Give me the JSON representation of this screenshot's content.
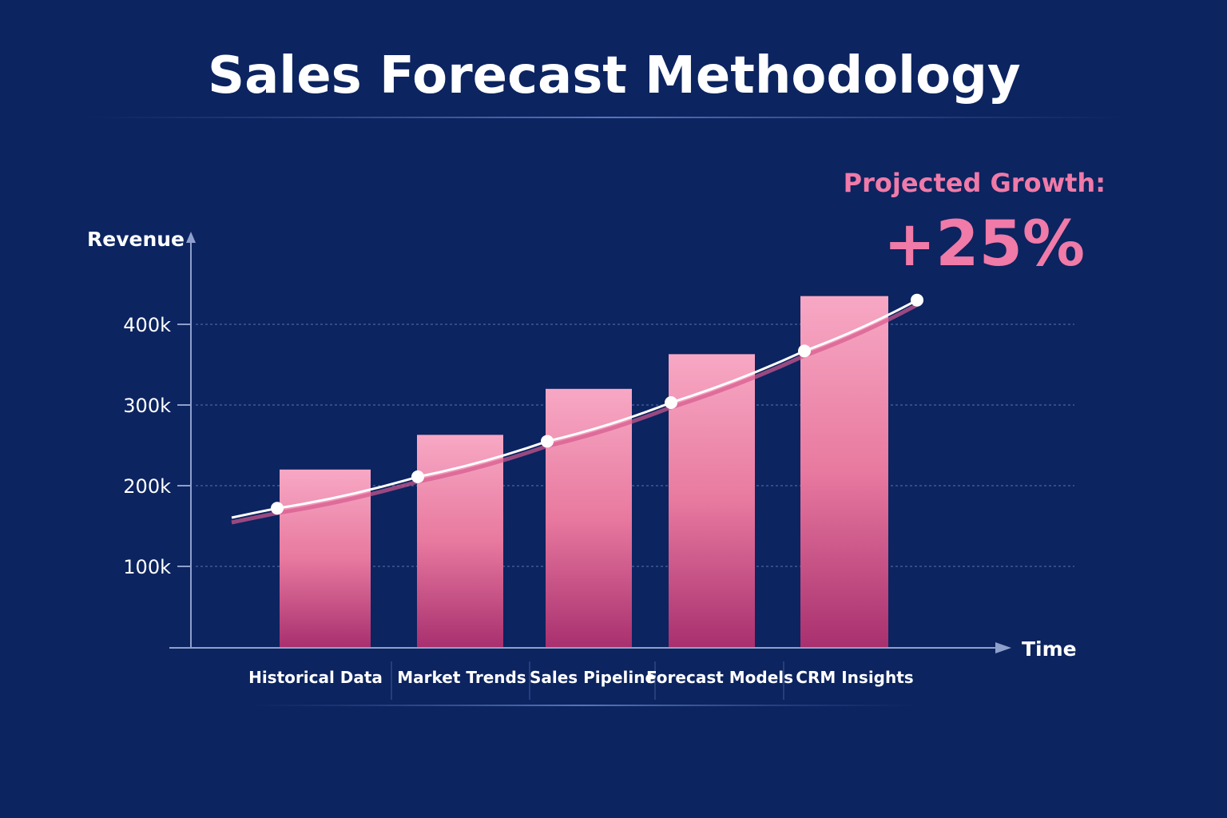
{
  "chart_data": {
    "type": "bar",
    "title": "Sales Forecast Methodology",
    "xlabel": "Time",
    "ylabel": "Revenue",
    "categories": [
      "Historical Data",
      "Market Trends",
      "Sales Pipeline",
      "Forecast Models",
      "CRM Insights"
    ],
    "values": [
      220000,
      263000,
      320000,
      363000,
      435000
    ],
    "trend_line": [
      172000,
      211000,
      255000,
      303000,
      367000,
      430000
    ],
    "yticks": [
      {
        "value": 100000,
        "label": "100k"
      },
      {
        "value": 200000,
        "label": "200k"
      },
      {
        "value": 300000,
        "label": "300k"
      },
      {
        "value": 400000,
        "label": "400k"
      }
    ],
    "ylim": [
      0,
      450000
    ],
    "grid": true,
    "annotation": {
      "label": "Projected Growth:",
      "value": "+25%"
    },
    "colors": {
      "background": "#0c2460",
      "bar_top": "#f7a8c4",
      "bar_bottom": "#a8306f",
      "line": "#ffffff",
      "annotation": "#f07aa8"
    }
  }
}
